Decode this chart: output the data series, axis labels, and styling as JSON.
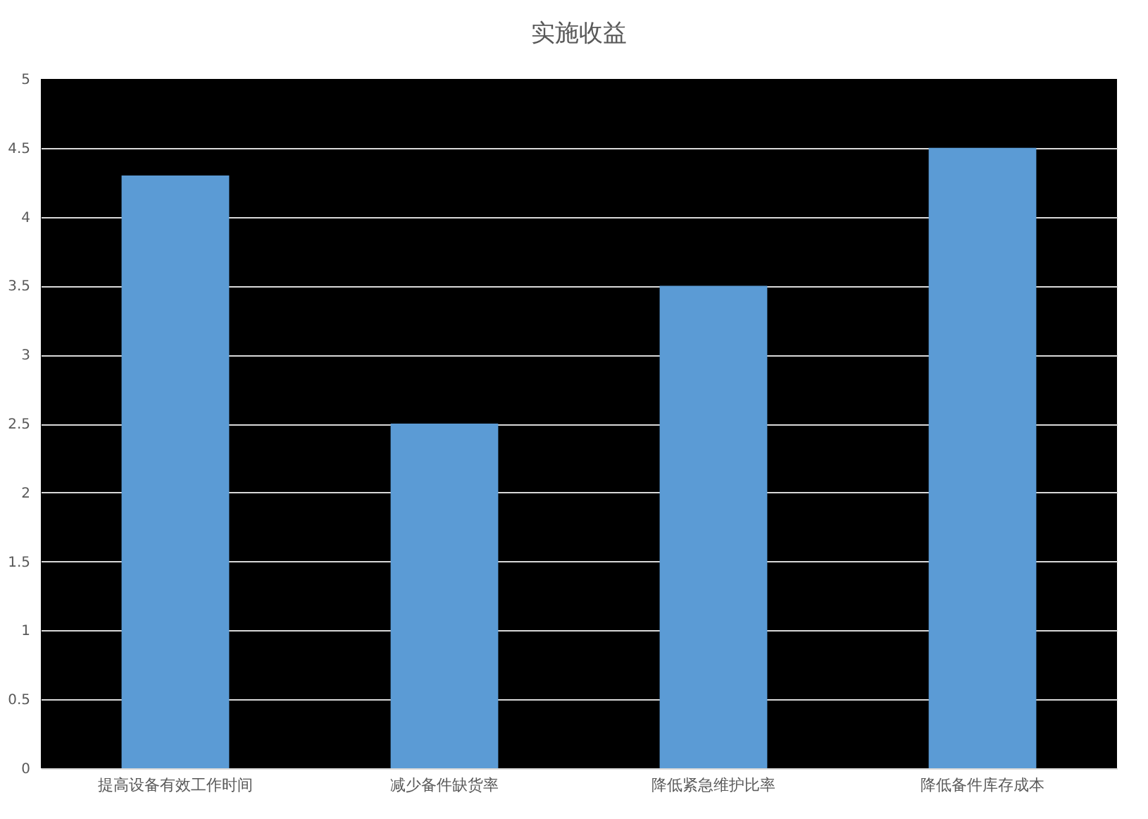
{
  "chart_data": {
    "type": "bar",
    "title": "实施收益",
    "categories": [
      "提高设备有效工作时间",
      "减少备件缺货率",
      "降低紧急维护比率",
      "降低备件库存成本"
    ],
    "values": [
      4.3,
      2.5,
      3.5,
      4.5
    ],
    "color": "#5b9bd5",
    "ylim": [
      0,
      5
    ],
    "yticks": [
      0,
      0.5,
      1,
      1.5,
      2,
      2.5,
      3,
      3.5,
      4,
      4.5,
      5
    ],
    "grid": "y"
  }
}
